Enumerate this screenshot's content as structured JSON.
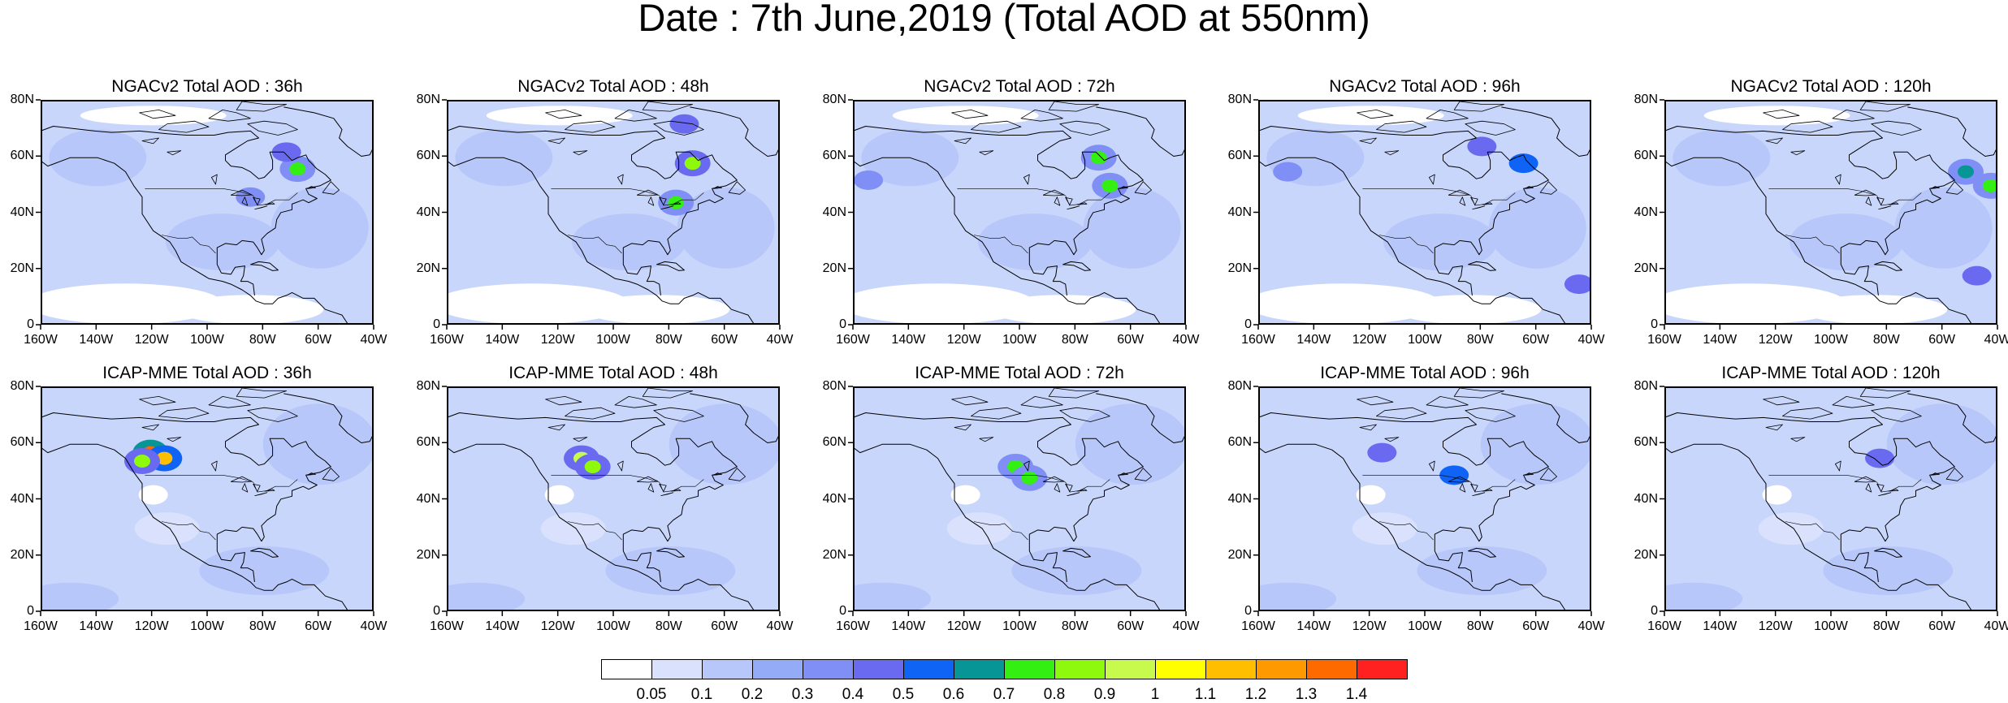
{
  "title": "Date : 7th June,2019 (Total AOD at 550nm)",
  "lat_labels": [
    "80N",
    "60N",
    "40N",
    "20N",
    "0"
  ],
  "lon_labels": [
    "160W",
    "140W",
    "120W",
    "100W",
    "80W",
    "60W",
    "40W"
  ],
  "panels": [
    {
      "title": "NGACv2 Total AOD : 36h",
      "model": "NGACv2",
      "lead": "36h",
      "hotspots": [
        {
          "lon": -68,
          "lat": 56,
          "level": 0.75
        },
        {
          "lon": -72,
          "lat": 62,
          "level": 0.45
        },
        {
          "lon": -85,
          "lat": 46,
          "level": 0.35
        }
      ]
    },
    {
      "title": "NGACv2 Total AOD : 48h",
      "model": "NGACv2",
      "lead": "48h",
      "hotspots": [
        {
          "lon": -72,
          "lat": 58,
          "level": 0.8
        },
        {
          "lon": -78,
          "lat": 44,
          "level": 0.7
        },
        {
          "lon": -75,
          "lat": 72,
          "level": 0.45
        }
      ]
    },
    {
      "title": "NGACv2 Total AOD : 72h",
      "model": "NGACv2",
      "lead": "72h",
      "hotspots": [
        {
          "lon": -72,
          "lat": 60,
          "level": 0.7
        },
        {
          "lon": -68,
          "lat": 50,
          "level": 0.75
        },
        {
          "lon": -155,
          "lat": 52,
          "level": 0.35
        }
      ]
    },
    {
      "title": "NGACv2 Total AOD : 96h",
      "model": "NGACv2",
      "lead": "96h",
      "hotspots": [
        {
          "lon": -80,
          "lat": 64,
          "level": 0.45
        },
        {
          "lon": -65,
          "lat": 58,
          "level": 0.5
        },
        {
          "lon": -45,
          "lat": 15,
          "level": 0.45
        },
        {
          "lon": -150,
          "lat": 55,
          "level": 0.35
        }
      ]
    },
    {
      "title": "NGACv2 Total AOD : 120h",
      "model": "NGACv2",
      "lead": "120h",
      "hotspots": [
        {
          "lon": -52,
          "lat": 55,
          "level": 0.65
        },
        {
          "lon": -43,
          "lat": 50,
          "level": 0.75
        },
        {
          "lon": -48,
          "lat": 18,
          "level": 0.45
        }
      ]
    },
    {
      "title": "ICAP-MME Total AOD : 36h",
      "model": "ICAP-MME",
      "lead": "36h",
      "hotspots": [
        {
          "lon": -121,
          "lat": 57,
          "level": 1.35
        },
        {
          "lon": -116,
          "lat": 55,
          "level": 1.1
        },
        {
          "lon": -124,
          "lat": 54,
          "level": 0.85
        }
      ]
    },
    {
      "title": "ICAP-MME Total AOD : 48h",
      "model": "ICAP-MME",
      "lead": "48h",
      "hotspots": [
        {
          "lon": -112,
          "lat": 55,
          "level": 0.95
        },
        {
          "lon": -108,
          "lat": 52,
          "level": 0.8
        }
      ]
    },
    {
      "title": "ICAP-MME Total AOD : 72h",
      "model": "ICAP-MME",
      "lead": "72h",
      "hotspots": [
        {
          "lon": -102,
          "lat": 52,
          "level": 0.75
        },
        {
          "lon": -97,
          "lat": 48,
          "level": 0.7
        }
      ]
    },
    {
      "title": "ICAP-MME Total AOD : 96h",
      "model": "ICAP-MME",
      "lead": "96h",
      "hotspots": [
        {
          "lon": -90,
          "lat": 49,
          "level": 0.55
        },
        {
          "lon": -116,
          "lat": 57,
          "level": 0.4
        }
      ]
    },
    {
      "title": "ICAP-MME Total AOD : 120h",
      "model": "ICAP-MME",
      "lead": "120h",
      "hotspots": [
        {
          "lon": -83,
          "lat": 55,
          "level": 0.4
        }
      ]
    }
  ],
  "colorbar": {
    "labels": [
      "0.05",
      "0.1",
      "0.2",
      "0.3",
      "0.4",
      "0.5",
      "0.6",
      "0.7",
      "0.8",
      "0.9",
      "1",
      "1.1",
      "1.2",
      "1.3",
      "1.4"
    ],
    "colors": [
      "#ffffff",
      "#d9e1fc",
      "#b8c7fa",
      "#94acf8",
      "#7f8ff5",
      "#6a6af0",
      "#0f63f5",
      "#079595",
      "#34ef12",
      "#8ef90d",
      "#c8f94d",
      "#ffff00",
      "#ffbf00",
      "#ff9900",
      "#ff6a00",
      "#ff2020"
    ]
  }
}
